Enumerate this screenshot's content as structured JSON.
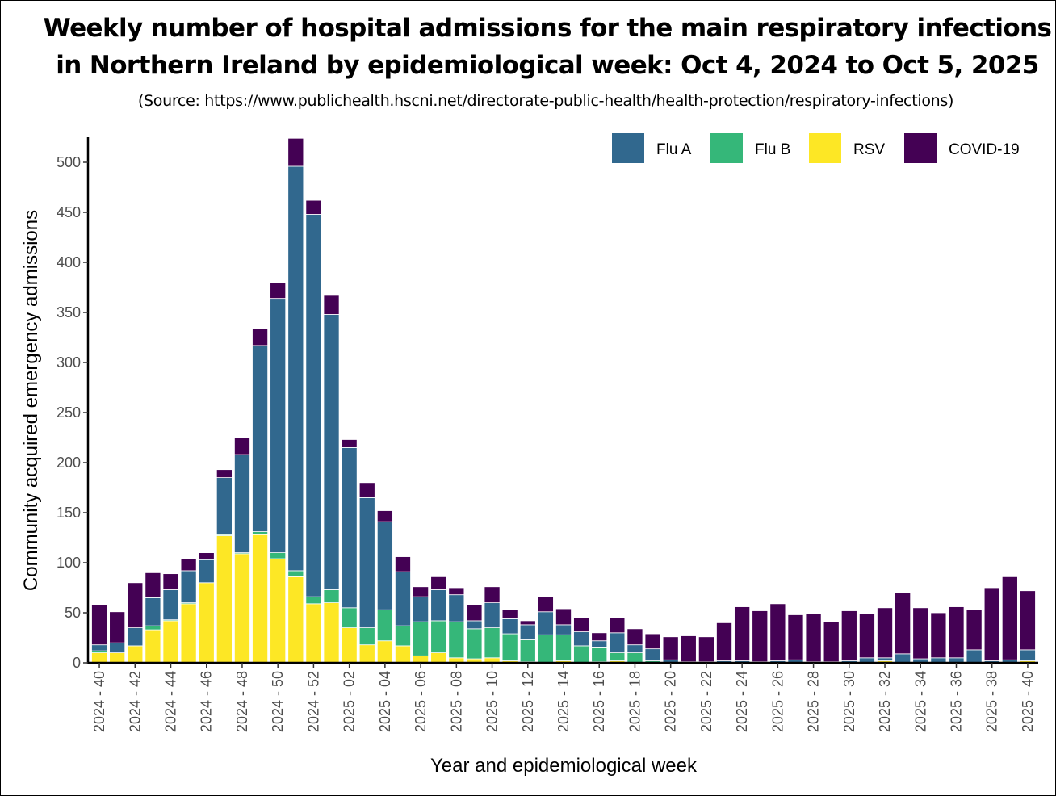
{
  "chart_data": {
    "type": "bar",
    "stacked": true,
    "title_line1": "Weekly number of hospital admissions for the main respiratory infections",
    "title_line2": "in Northern Ireland by epidemiological week: Oct 4, 2024 to Oct 5, 2025",
    "subtitle": "(Source: https://www.publichealth.hscni.net/directorate-public-health/health-protection/respiratory-infections)",
    "xlabel": "Year and epidemiological week",
    "ylabel": "Community acquired emergency admissions",
    "ylim": [
      0,
      525
    ],
    "yticks": [
      0,
      50,
      100,
      150,
      200,
      250,
      300,
      350,
      400,
      450,
      500
    ],
    "grid": false,
    "legend_position": "top-right",
    "categories": [
      "2024 - 40",
      "2024 - 41",
      "2024 - 42",
      "2024 - 43",
      "2024 - 44",
      "2024 - 45",
      "2024 - 46",
      "2024 - 47",
      "2024 - 48",
      "2024 - 49",
      "2024 - 50",
      "2024 - 51",
      "2024 - 52",
      "2025 - 01",
      "2025 - 02",
      "2025 - 03",
      "2025 - 04",
      "2025 - 05",
      "2025 - 06",
      "2025 - 07",
      "2025 - 08",
      "2025 - 09",
      "2025 - 10",
      "2025 - 11",
      "2025 - 12",
      "2025 - 13",
      "2025 - 14",
      "2025 - 15",
      "2025 - 16",
      "2025 - 17",
      "2025 - 18",
      "2025 - 19",
      "2025 - 20",
      "2025 - 21",
      "2025 - 22",
      "2025 - 23",
      "2025 - 24",
      "2025 - 25",
      "2025 - 26",
      "2025 - 27",
      "2025 - 28",
      "2025 - 29",
      "2025 - 30",
      "2025 - 31",
      "2025 - 32",
      "2025 - 33",
      "2025 - 34",
      "2025 - 35",
      "2025 - 36",
      "2025 - 37",
      "2025 - 38",
      "2025 - 39",
      "2025 - 40"
    ],
    "xticks": [
      "2024 - 40",
      "2024 - 42",
      "2024 - 44",
      "2024 - 46",
      "2024 - 48",
      "2024 - 50",
      "2024 - 52",
      "2025 - 02",
      "2025 - 04",
      "2025 - 06",
      "2025 - 08",
      "2025 - 10",
      "2025 - 12",
      "2025 - 14",
      "2025 - 16",
      "2025 - 18",
      "2025 - 20",
      "2025 - 22",
      "2025 - 24",
      "2025 - 26",
      "2025 - 28",
      "2025 - 30",
      "2025 - 32",
      "2025 - 34",
      "2025 - 36",
      "2025 - 38",
      "2025 - 40"
    ],
    "series": [
      {
        "name": "RSV",
        "color": "#fde725",
        "values": [
          10,
          10,
          17,
          33,
          42,
          59,
          80,
          127,
          109,
          128,
          104,
          86,
          59,
          60,
          35,
          18,
          22,
          17,
          7,
          10,
          5,
          4,
          5,
          2,
          1,
          0,
          2,
          0,
          1,
          2,
          0,
          0,
          0,
          0,
          0,
          0,
          0,
          0,
          0,
          0,
          0,
          0,
          0,
          0,
          2,
          0,
          0,
          0,
          0,
          0,
          0,
          0,
          2
        ]
      },
      {
        "name": "Flu B",
        "color": "#35b779",
        "values": [
          2,
          0,
          0,
          4,
          1,
          1,
          0,
          1,
          1,
          3,
          6,
          6,
          7,
          13,
          20,
          17,
          31,
          20,
          34,
          32,
          36,
          30,
          30,
          27,
          22,
          28,
          26,
          17,
          14,
          8,
          10,
          2,
          0,
          0,
          0,
          0,
          0,
          0,
          0,
          0,
          0,
          0,
          0,
          0,
          0,
          0,
          0,
          0,
          0,
          0,
          0,
          0,
          0
        ]
      },
      {
        "name": "Flu A",
        "color": "#31688e",
        "values": [
          6,
          10,
          18,
          28,
          30,
          32,
          23,
          57,
          98,
          186,
          254,
          404,
          382,
          275,
          160,
          130,
          88,
          54,
          25,
          31,
          27,
          8,
          25,
          15,
          15,
          23,
          10,
          14,
          7,
          20,
          8,
          12,
          3,
          1,
          1,
          2,
          2,
          1,
          2,
          3,
          1,
          1,
          2,
          5,
          3,
          9,
          4,
          5,
          5,
          13,
          2,
          3,
          11
        ]
      },
      {
        "name": "COVID-19",
        "color": "#440154",
        "values": [
          40,
          31,
          45,
          25,
          16,
          12,
          7,
          8,
          17,
          17,
          16,
          28,
          14,
          19,
          8,
          15,
          11,
          15,
          10,
          13,
          7,
          16,
          16,
          9,
          4,
          15,
          16,
          14,
          8,
          15,
          16,
          15,
          23,
          26,
          25,
          38,
          54,
          51,
          57,
          45,
          48,
          40,
          50,
          44,
          50,
          61,
          51,
          45,
          51,
          40,
          73,
          83,
          59
        ]
      }
    ],
    "legend_order": [
      "Flu A",
      "Flu B",
      "RSV",
      "COVID-19"
    ]
  }
}
